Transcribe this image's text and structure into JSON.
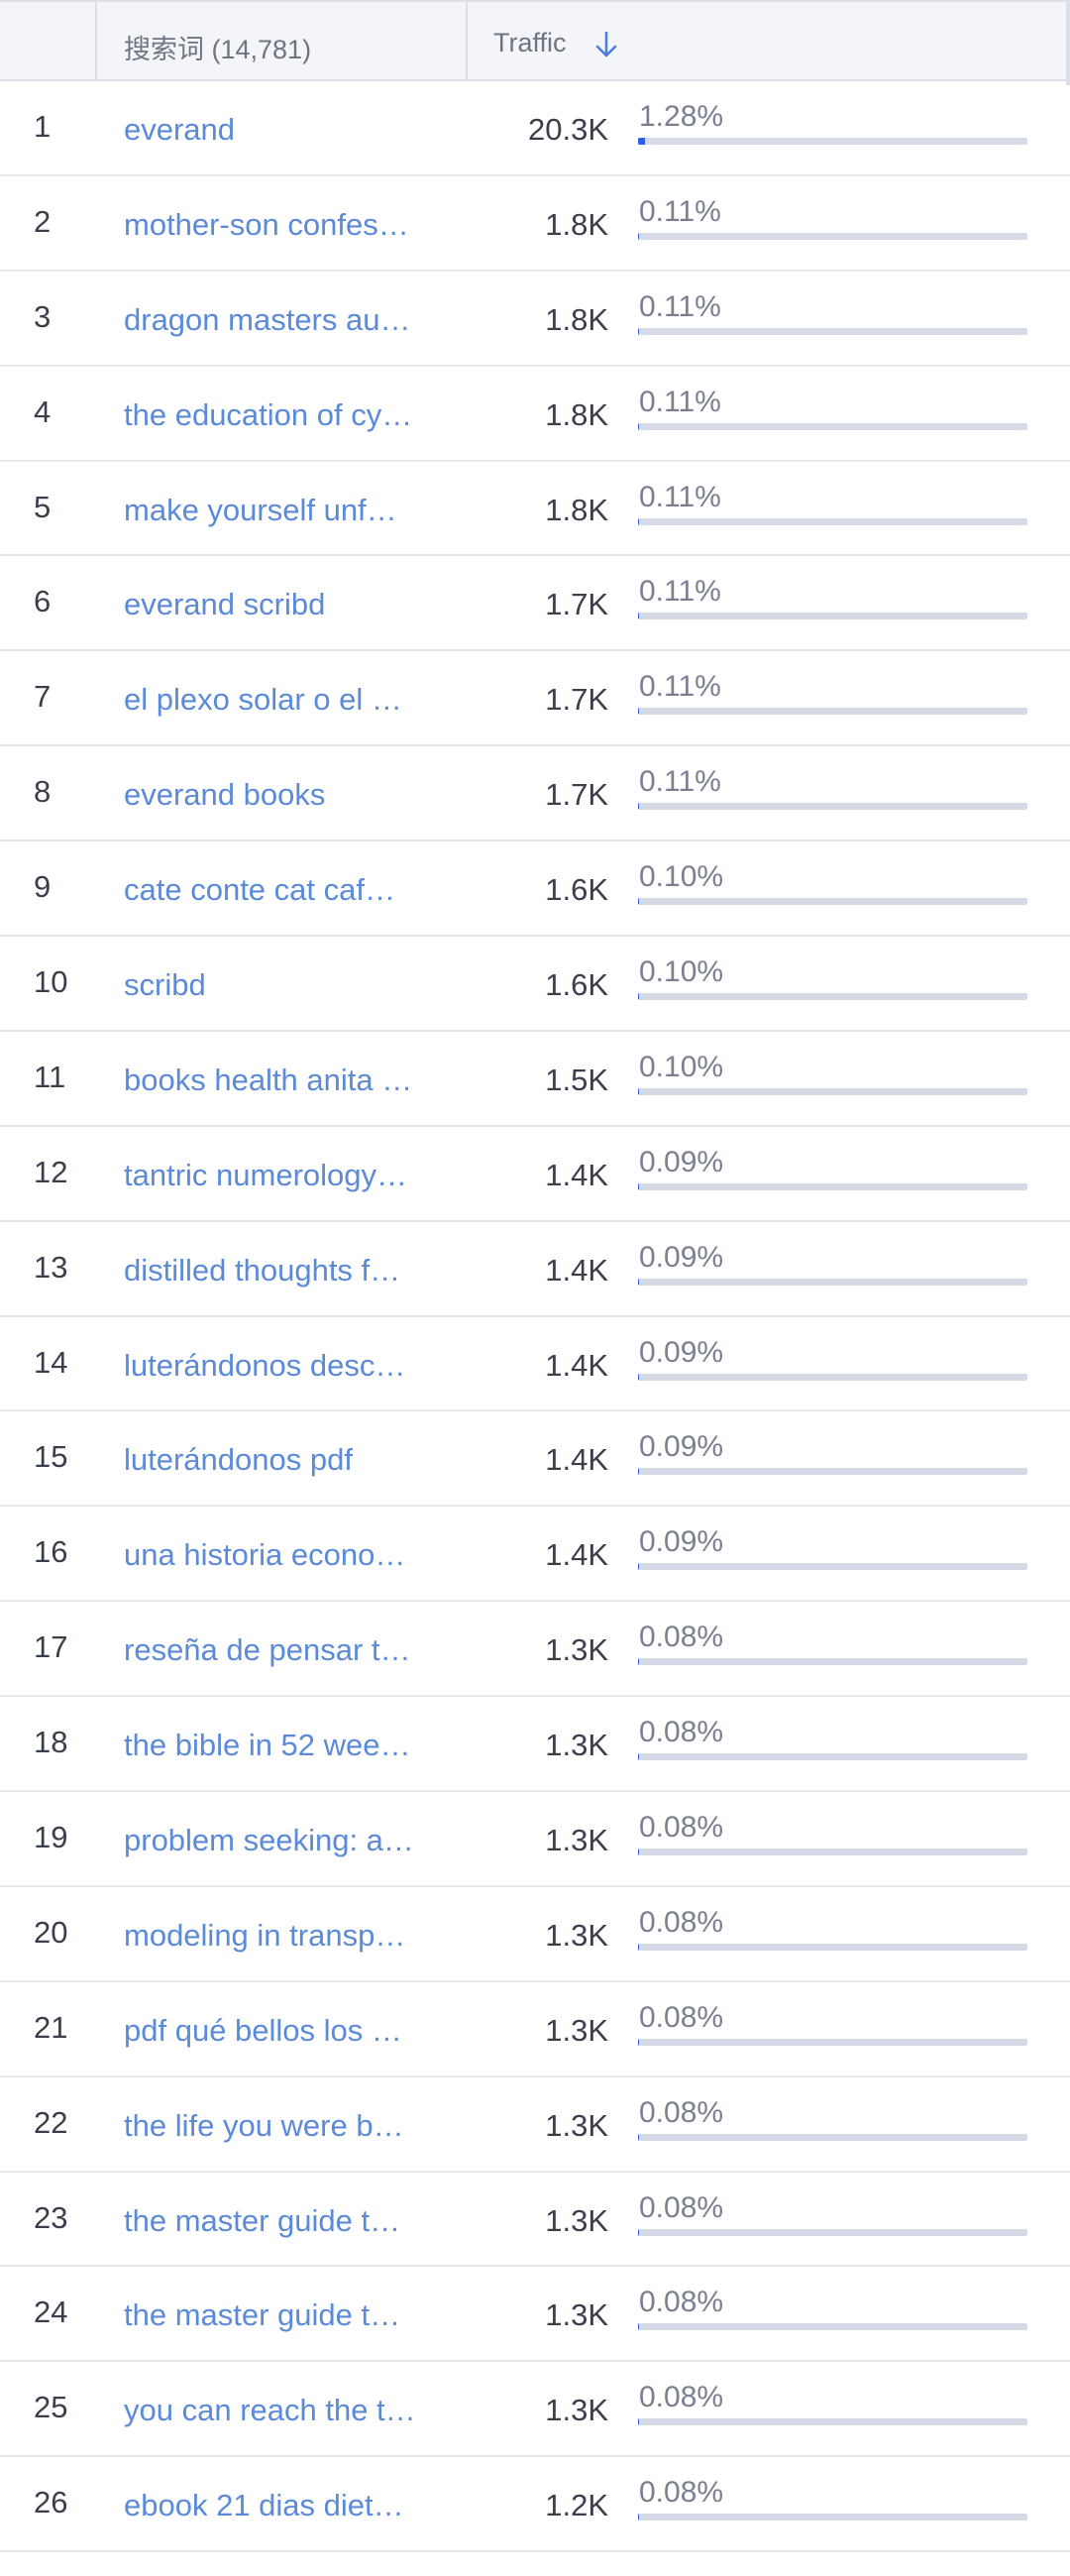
{
  "header": {
    "keyword_label": "搜索词 (14,781)",
    "traffic_label": "Traffic",
    "sort_icon": "arrow-down-icon"
  },
  "colors": {
    "link": "#5b8ad9",
    "bar_fill": "#2f5fe0",
    "bar_track": "#d6d9e6",
    "header_bg": "#f4f5f8"
  },
  "rows": [
    {
      "rank": "1",
      "keyword": "everand",
      "traffic": "20.3K",
      "share": "1.28%",
      "share_value": 1.28
    },
    {
      "rank": "2",
      "keyword": "mother-son confes…",
      "traffic": "1.8K",
      "share": "0.11%",
      "share_value": 0.11
    },
    {
      "rank": "3",
      "keyword": "dragon masters au…",
      "traffic": "1.8K",
      "share": "0.11%",
      "share_value": 0.11
    },
    {
      "rank": "4",
      "keyword": "the education of cy…",
      "traffic": "1.8K",
      "share": "0.11%",
      "share_value": 0.11
    },
    {
      "rank": "5",
      "keyword": "make yourself unf…",
      "traffic": "1.8K",
      "share": "0.11%",
      "share_value": 0.11
    },
    {
      "rank": "6",
      "keyword": "everand scribd",
      "traffic": "1.7K",
      "share": "0.11%",
      "share_value": 0.11
    },
    {
      "rank": "7",
      "keyword": "el plexo solar o el …",
      "traffic": "1.7K",
      "share": "0.11%",
      "share_value": 0.11
    },
    {
      "rank": "8",
      "keyword": "everand books",
      "traffic": "1.7K",
      "share": "0.11%",
      "share_value": 0.11
    },
    {
      "rank": "9",
      "keyword": "cate conte cat caf…",
      "traffic": "1.6K",
      "share": "0.10%",
      "share_value": 0.1
    },
    {
      "rank": "10",
      "keyword": "scribd",
      "traffic": "1.6K",
      "share": "0.10%",
      "share_value": 0.1
    },
    {
      "rank": "11",
      "keyword": "books health anita …",
      "traffic": "1.5K",
      "share": "0.10%",
      "share_value": 0.1
    },
    {
      "rank": "12",
      "keyword": "tantric numerology…",
      "traffic": "1.4K",
      "share": "0.09%",
      "share_value": 0.09
    },
    {
      "rank": "13",
      "keyword": "distilled thoughts f…",
      "traffic": "1.4K",
      "share": "0.09%",
      "share_value": 0.09
    },
    {
      "rank": "14",
      "keyword": "luterándonos desc…",
      "traffic": "1.4K",
      "share": "0.09%",
      "share_value": 0.09
    },
    {
      "rank": "15",
      "keyword": "luterándonos pdf",
      "traffic": "1.4K",
      "share": "0.09%",
      "share_value": 0.09
    },
    {
      "rank": "16",
      "keyword": "una historia econo…",
      "traffic": "1.4K",
      "share": "0.09%",
      "share_value": 0.09
    },
    {
      "rank": "17",
      "keyword": "reseña de pensar t…",
      "traffic": "1.3K",
      "share": "0.08%",
      "share_value": 0.08
    },
    {
      "rank": "18",
      "keyword": "the bible in 52 wee…",
      "traffic": "1.3K",
      "share": "0.08%",
      "share_value": 0.08
    },
    {
      "rank": "19",
      "keyword": "problem seeking: a…",
      "traffic": "1.3K",
      "share": "0.08%",
      "share_value": 0.08
    },
    {
      "rank": "20",
      "keyword": "modeling in transp…",
      "traffic": "1.3K",
      "share": "0.08%",
      "share_value": 0.08
    },
    {
      "rank": "21",
      "keyword": "pdf qué bellos los …",
      "traffic": "1.3K",
      "share": "0.08%",
      "share_value": 0.08
    },
    {
      "rank": "22",
      "keyword": "the life you were b…",
      "traffic": "1.3K",
      "share": "0.08%",
      "share_value": 0.08
    },
    {
      "rank": "23",
      "keyword": "the master guide t…",
      "traffic": "1.3K",
      "share": "0.08%",
      "share_value": 0.08
    },
    {
      "rank": "24",
      "keyword": "the master guide t…",
      "traffic": "1.3K",
      "share": "0.08%",
      "share_value": 0.08
    },
    {
      "rank": "25",
      "keyword": "you can reach the t…",
      "traffic": "1.3K",
      "share": "0.08%",
      "share_value": 0.08
    },
    {
      "rank": "26",
      "keyword": "ebook 21 dias diet…",
      "traffic": "1.2K",
      "share": "0.08%",
      "share_value": 0.08
    }
  ]
}
